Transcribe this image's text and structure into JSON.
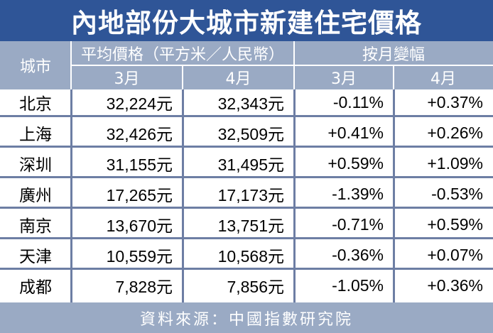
{
  "title": "內地部份大城市新建住宅價格",
  "header": {
    "city": "城市",
    "avg_price": "平均價格（平方米／人民幣）",
    "mom_change": "按月變幅",
    "month1": "3月",
    "month2": "4月"
  },
  "rows": [
    {
      "city": "北京",
      "price_mar": "32,224元",
      "price_apr": "32,343元",
      "chg_mar": "-0.11%",
      "chg_apr": "+0.37%"
    },
    {
      "city": "上海",
      "price_mar": "32,426元",
      "price_apr": "32,509元",
      "chg_mar": "+0.41%",
      "chg_apr": "+0.26%"
    },
    {
      "city": "深圳",
      "price_mar": "31,155元",
      "price_apr": "31,495元",
      "chg_mar": "+0.59%",
      "chg_apr": "+1.09%"
    },
    {
      "city": "廣州",
      "price_mar": "17,265元",
      "price_apr": "17,173元",
      "chg_mar": "-1.39%",
      "chg_apr": "-0.53%"
    },
    {
      "city": "南京",
      "price_mar": "13,670元",
      "price_apr": "13,751元",
      "chg_mar": "-0.71%",
      "chg_apr": "+0.59%"
    },
    {
      "city": "天津",
      "price_mar": "10,559元",
      "price_apr": "10,568元",
      "chg_mar": "-0.36%",
      "chg_apr": "+0.07%"
    },
    {
      "city": "成都",
      "price_mar": "7,828元",
      "price_apr": "7,856元",
      "chg_mar": "-1.05%",
      "chg_apr": "+0.36%"
    }
  ],
  "footer": "資料來源：中國指數研究院",
  "colors": {
    "title_bg": "#2f5597",
    "header_bg": "#9aaac4",
    "row_rule": "#6d7ea4"
  }
}
